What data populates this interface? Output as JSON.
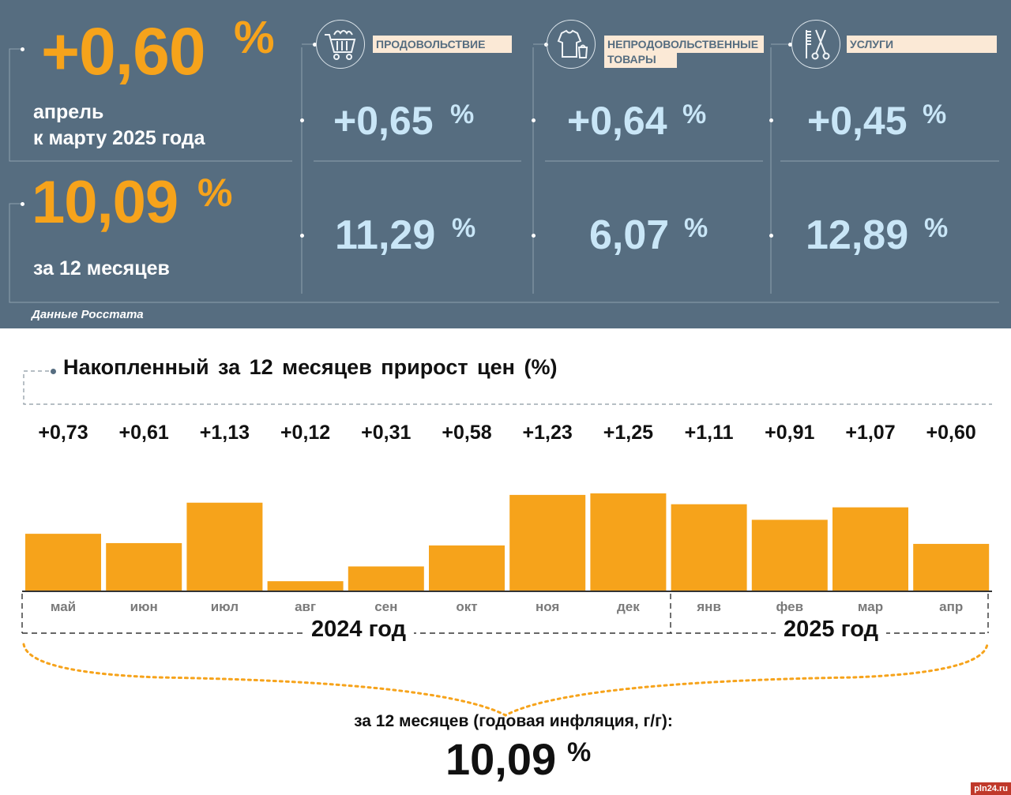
{
  "summary": {
    "monthly_value": "+0,60",
    "monthly_pct": "%",
    "monthly_sub1": "апрель",
    "monthly_sub2": "к марту 2025 года",
    "annual_value": "10,09",
    "annual_pct": "%",
    "annual_sub": "за 12 месяцев",
    "source": "Данные Росстата"
  },
  "categories": [
    {
      "label": "ПРОДОВОЛЬСТВИЕ",
      "icon": "shopping-cart-icon",
      "monthly": "+0,65",
      "annual": "11,29",
      "pct": "%"
    },
    {
      "label": "НЕПРОДОВОЛЬСТВЕННЫЕ ТОВАРЫ",
      "label_line1": "НЕПРОДОВОЛЬСТВЕННЫЕ",
      "label_line2": "ТОВАРЫ",
      "icon": "clothes-bag-icon",
      "monthly": "+0,64",
      "annual": "6,07",
      "pct": "%"
    },
    {
      "label": "УСЛУГИ",
      "icon": "comb-scissors-icon",
      "monthly": "+0,45",
      "annual": "12,89",
      "pct": "%"
    }
  ],
  "chart_data": {
    "type": "bar",
    "title": "Накопленный за 12 месяцев прирост цен (%)",
    "categories": [
      "май",
      "июн",
      "июл",
      "авг",
      "сен",
      "окт",
      "ноя",
      "дек",
      "янв",
      "фев",
      "мар",
      "апр"
    ],
    "values": [
      0.73,
      0.61,
      1.13,
      0.12,
      0.31,
      0.58,
      1.23,
      1.25,
      1.11,
      0.91,
      1.07,
      0.6
    ],
    "value_labels": [
      "+0,73",
      "+0,61",
      "+1,13",
      "+0,12",
      "+0,31",
      "+0,58",
      "+1,23",
      "+1,25",
      "+1,11",
      "+0,91",
      "+1,07",
      "+0,60"
    ],
    "years": [
      {
        "label": "2024 год",
        "months": [
          "май",
          "июн",
          "июл",
          "авг",
          "сен",
          "окт",
          "ноя",
          "дек"
        ]
      },
      {
        "label": "2025 год",
        "months": [
          "янв",
          "фев",
          "мар",
          "апр"
        ]
      }
    ],
    "bar_color": "#f6a31b",
    "ylim": [
      0,
      1.3
    ],
    "grid": false
  },
  "footer": {
    "caption": "за 12 месяцев (годовая инфляция, г/г):",
    "value": "10,09",
    "pct": "%"
  },
  "watermark": "pln24.ru",
  "colors": {
    "panel": "#566d80",
    "orange": "#f6a31b",
    "light_blue": "#c9e6f7",
    "tag": "#fbe9d6"
  }
}
